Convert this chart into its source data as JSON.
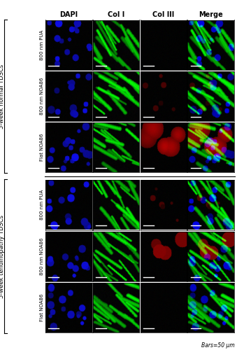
{
  "col_headers": [
    "DAPI",
    "Col I",
    "Col III",
    "Merge"
  ],
  "row_labels": [
    "800 nm PUA",
    "800 nm NOA86",
    "Flat NOA86",
    "800 nm PUA",
    "800 nm NOA86",
    "Flat NOA86"
  ],
  "group_labels": [
    "5-week normal TDSCs",
    "5-week tendinopathy TDSCs"
  ],
  "scale_bar_text": "Bars=50 μm",
  "col_header_fontsize": 7,
  "row_label_fontsize": 5,
  "group_label_fontsize": 6,
  "background_color": "#ffffff",
  "n_rows": 6,
  "n_cols": 4
}
